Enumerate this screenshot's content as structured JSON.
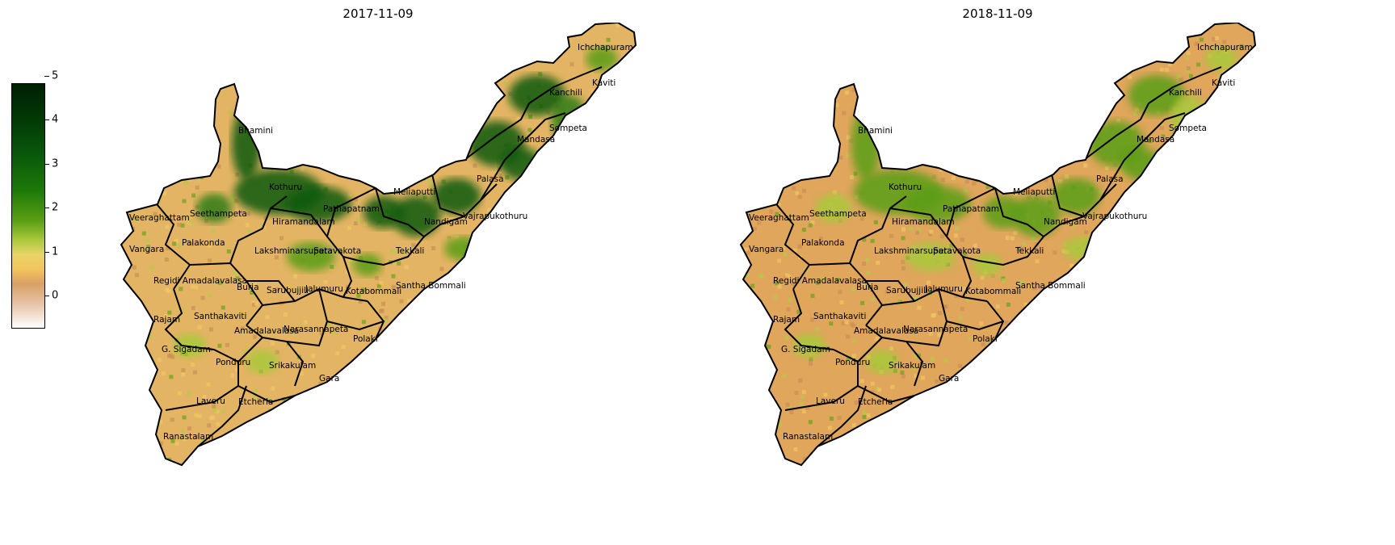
{
  "colorbar": {
    "ticks": [
      "0",
      "1",
      "2",
      "3",
      "4",
      "5"
    ],
    "range": [
      0,
      5
    ],
    "colors": [
      "#ffffff",
      "#d9a066",
      "#f2c55b",
      "#a9c93b",
      "#1f7a09",
      "#011f02"
    ]
  },
  "panels": [
    {
      "title": "2017-11-09",
      "vegetation_level": "high"
    },
    {
      "title": "2018-11-09",
      "vegetation_level": "lower"
    }
  ],
  "mandals": [
    "Ichchapuram",
    "Kaviti",
    "Kanchili",
    "Bhamini",
    "Sompeta",
    "Mandasa",
    "Palasa",
    "Kothuru",
    "Meliaputti",
    "Veeraghattam",
    "Seethampeta",
    "Hiramandalam",
    "Pathapatnam",
    "Nandigam",
    "Vajrapukothuru",
    "Palakonda",
    "Vangara",
    "Lakshminarsupeta",
    "Saravakota",
    "Tekkali",
    "Regidi Amadalavalasa",
    "Burja",
    "Sarubujjili",
    "Jalumuru",
    "Kotabommali",
    "Santha Bommali",
    "Rajam",
    "Santhakaviti",
    "Amadalavalasa",
    "Narasannapeta",
    "Polaki",
    "G. Sigadam",
    "Ponduru",
    "Srikakulam",
    "Gara",
    "Laveru",
    "Etcherla",
    "Ranastalam"
  ]
}
